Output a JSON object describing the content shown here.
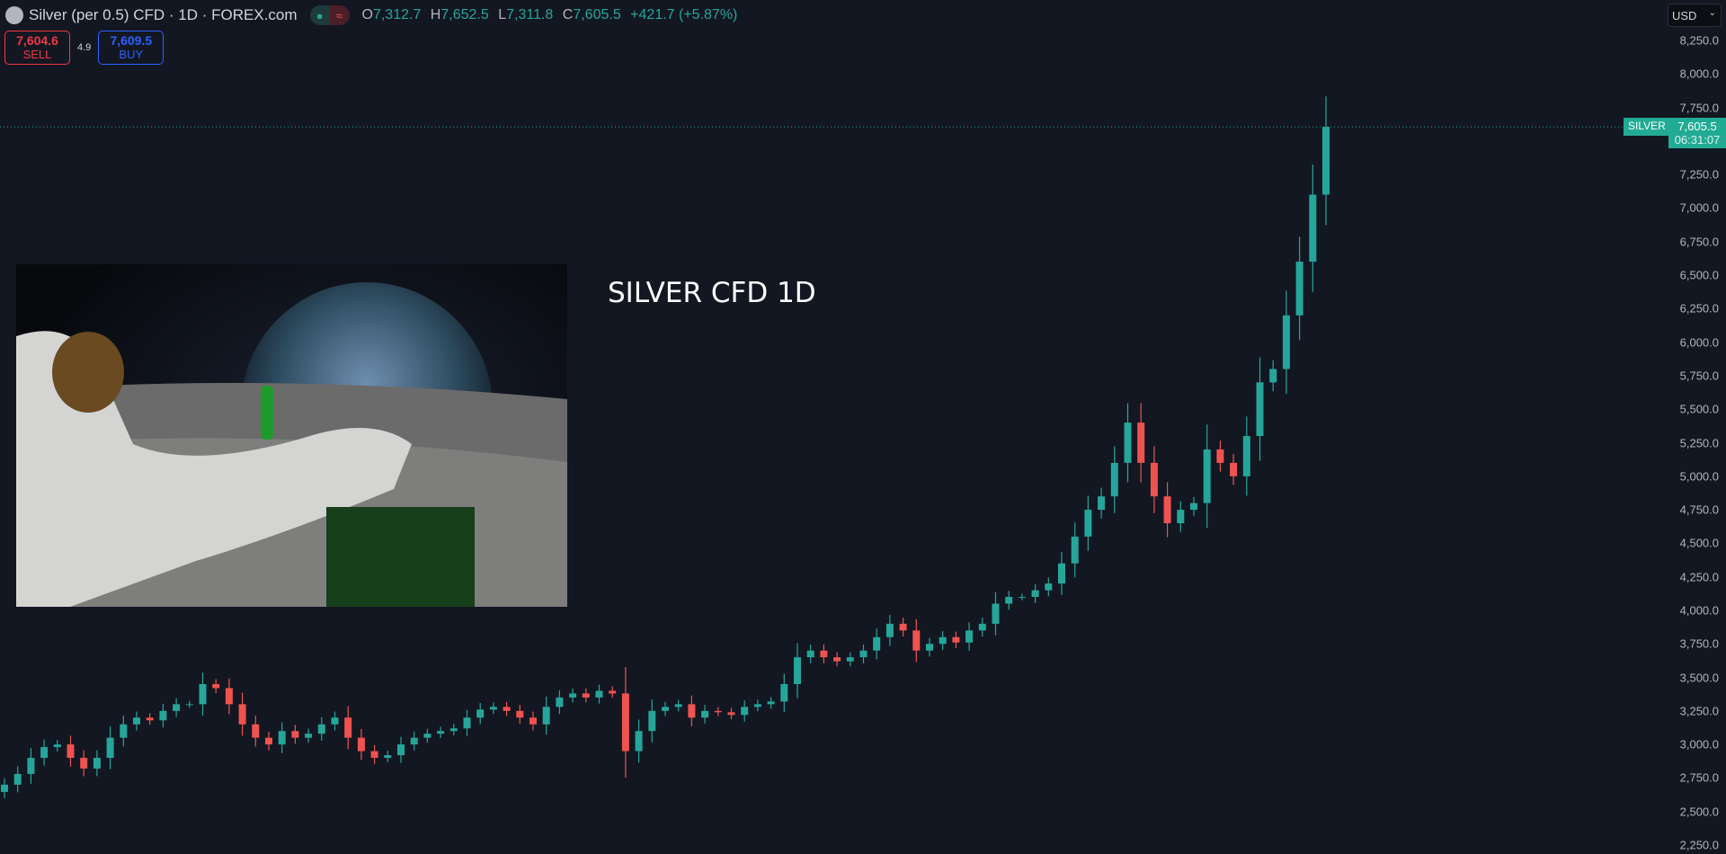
{
  "header": {
    "symbol_title": "Silver (per 0.5) CFD · 1D · FOREX.com",
    "status_icons": [
      "market-open-dot",
      "delayed-data-icon"
    ],
    "ohlc": {
      "o_label": "O",
      "o": "7,312.7",
      "h_label": "H",
      "h": "7,652.5",
      "l_label": "L",
      "l": "7,311.8",
      "c_label": "C",
      "c": "7,605.5",
      "change": "+421.7 (+5.87%)"
    }
  },
  "trade": {
    "sell_price": "7,604.6",
    "sell_label": "SELL",
    "spread": "4.9",
    "buy_price": "7,609.5",
    "buy_label": "BUY"
  },
  "axis": {
    "currency": "USD",
    "ticks": [
      "8,250.0",
      "8,000.0",
      "7,750.0",
      "7,250.0",
      "7,000.0",
      "6,750.0",
      "6,500.0",
      "6,250.0",
      "6,000.0",
      "5,750.0",
      "5,500.0",
      "5,250.0",
      "5,000.0",
      "4,750.0",
      "4,500.0",
      "4,250.0",
      "4,000.0",
      "3,750.0",
      "3,500.0",
      "3,250.0",
      "3,000.0",
      "2,750.0",
      "2,500.0",
      "2,250.0"
    ]
  },
  "price_label": {
    "symbol": "SILVER",
    "price": "7,605.5",
    "countdown": "06:31:07"
  },
  "annotation": "SILVER CFD 1D",
  "colors": {
    "up": "#26a69a",
    "down": "#ef5350",
    "background": "#131722",
    "last_price": "#22ab94"
  },
  "chart_data": {
    "type": "candlestick",
    "ylim": [
      2250,
      8250
    ],
    "last_close": 7605.5,
    "closes": [
      2700,
      2780,
      2900,
      2980,
      3000,
      2900,
      2820,
      2900,
      3050,
      3150,
      3200,
      3180,
      3250,
      3300,
      3300,
      3450,
      3420,
      3300,
      3150,
      3050,
      3000,
      3100,
      3050,
      3080,
      3150,
      3200,
      3050,
      2950,
      2900,
      2920,
      3000,
      3050,
      3080,
      3100,
      3120,
      3200,
      3260,
      3280,
      3250,
      3200,
      3150,
      3280,
      3350,
      3380,
      3350,
      3400,
      3380,
      2950,
      3100,
      3250,
      3280,
      3300,
      3200,
      3250,
      3240,
      3220,
      3280,
      3300,
      3320,
      3450,
      3650,
      3700,
      3650,
      3620,
      3650,
      3700,
      3800,
      3900,
      3850,
      3700,
      3750,
      3800,
      3760,
      3850,
      3900,
      4050,
      4100,
      4100,
      4150,
      4200,
      4350,
      4550,
      4750,
      4850,
      5100,
      5400,
      5100,
      4850,
      4650,
      4750,
      4800,
      5200,
      5100,
      5000,
      5300,
      5700,
      5800,
      6200,
      6600,
      7100,
      7605.5
    ]
  }
}
